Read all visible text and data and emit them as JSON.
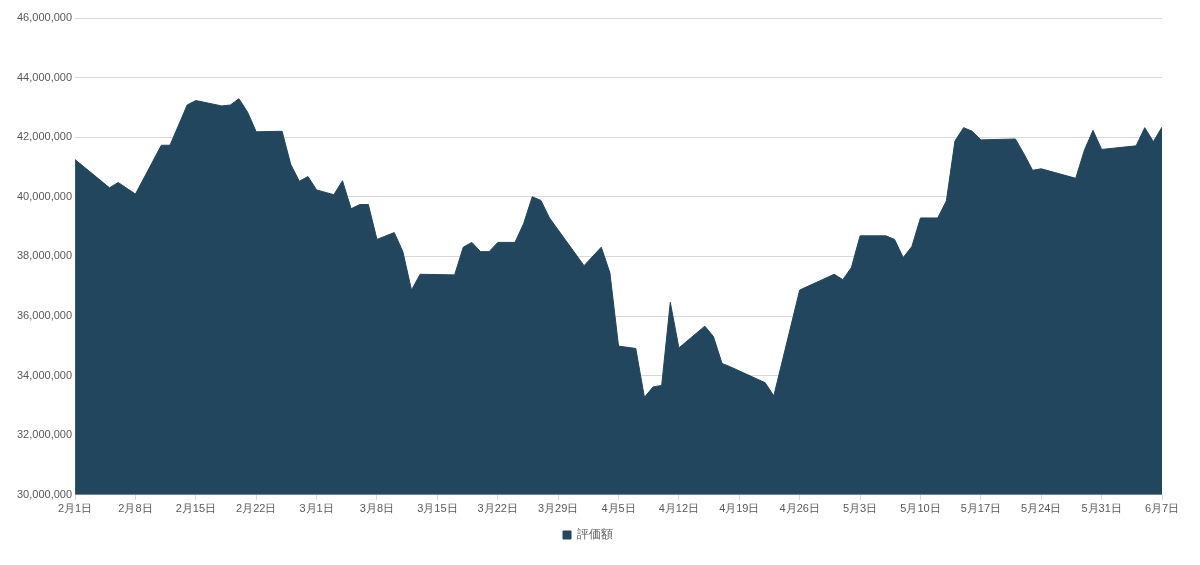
{
  "chart_data": {
    "type": "area",
    "legend": "bottom",
    "grid": "y",
    "x": [
      "--02-01",
      "--02-05",
      "--02-06",
      "--02-08",
      "--02-11",
      "--02-12",
      "--02-14",
      "--02-15",
      "--02-18",
      "--02-19",
      "--02-20",
      "--02-21",
      "--02-22",
      "--02-25",
      "--02-26",
      "--02-27",
      "--02-28",
      "--03-01",
      "--03-03",
      "--03-04",
      "--03-05",
      "--03-06",
      "--03-07",
      "--03-08",
      "--03-10",
      "--03-11",
      "--03-12",
      "--03-13",
      "--03-17",
      "--03-18",
      "--03-19",
      "--03-20",
      "--03-21",
      "--03-22",
      "--03-24",
      "--03-25",
      "--03-26",
      "--03-27",
      "--03-28",
      "--04-01",
      "--04-03",
      "--04-04",
      "--04-05",
      "--04-07",
      "--04-08",
      "--04-09",
      "--04-10",
      "--04-11",
      "--04-12",
      "--04-15",
      "--04-16",
      "--04-17",
      "--04-18",
      "--04-22",
      "--04-23",
      "--04-26",
      "--04-30",
      "--05-01",
      "--05-02",
      "--05-03",
      "--05-06",
      "--05-07",
      "--05-08",
      "--05-09",
      "--05-10",
      "--05-12",
      "--05-13",
      "--05-14",
      "--05-15",
      "--05-16",
      "--05-17",
      "--05-21",
      "--05-22",
      "--05-23",
      "--05-24",
      "--05-28",
      "--05-29",
      "--05-30",
      "--05-31",
      "--06-04",
      "--06-05",
      "--06-06",
      "--06-07"
    ],
    "series": [
      {
        "name": "評価額",
        "color": "#22465e",
        "values": [
          41250000,
          40300000,
          40480000,
          40090000,
          41730000,
          41730000,
          43080000,
          43230000,
          43050000,
          43080000,
          43290000,
          42840000,
          42180000,
          42200000,
          41090000,
          40520000,
          40680000,
          40230000,
          40070000,
          40540000,
          39600000,
          39740000,
          39740000,
          38570000,
          38800000,
          38160000,
          36870000,
          37400000,
          37380000,
          38310000,
          38470000,
          38160000,
          38160000,
          38470000,
          38470000,
          39100000,
          40000000,
          39880000,
          39290000,
          37690000,
          38310000,
          37450000,
          34990000,
          34910000,
          33270000,
          33620000,
          33670000,
          36460000,
          34930000,
          35660000,
          35310000,
          34410000,
          34290000,
          33760000,
          33320000,
          36870000,
          37400000,
          37220000,
          37630000,
          38690000,
          38690000,
          38570000,
          37960000,
          38330000,
          39290000,
          39290000,
          39860000,
          41870000,
          42320000,
          42200000,
          41910000,
          41940000,
          41440000,
          40890000,
          40940000,
          40620000,
          41560000,
          42230000,
          41590000,
          41710000,
          42320000,
          41850000,
          42340000
        ]
      }
    ],
    "xlim": [
      "--02-01",
      "--06-07"
    ],
    "xticks": [
      {
        "value": "--02-01",
        "label": "2月1日"
      },
      {
        "value": "--02-08",
        "label": "2月8日"
      },
      {
        "value": "--02-15",
        "label": "2月15日"
      },
      {
        "value": "--02-22",
        "label": "2月22日"
      },
      {
        "value": "--03-01",
        "label": "3月1日"
      },
      {
        "value": "--03-08",
        "label": "3月8日"
      },
      {
        "value": "--03-15",
        "label": "3月15日"
      },
      {
        "value": "--03-22",
        "label": "3月22日"
      },
      {
        "value": "--03-29",
        "label": "3月29日"
      },
      {
        "value": "--04-05",
        "label": "4月5日"
      },
      {
        "value": "--04-12",
        "label": "4月12日"
      },
      {
        "value": "--04-19",
        "label": "4月19日"
      },
      {
        "value": "--04-26",
        "label": "4月26日"
      },
      {
        "value": "--05-03",
        "label": "5月3日"
      },
      {
        "value": "--05-10",
        "label": "5月10日"
      },
      {
        "value": "--05-17",
        "label": "5月17日"
      },
      {
        "value": "--05-24",
        "label": "5月24日"
      },
      {
        "value": "--05-31",
        "label": "5月31日"
      },
      {
        "value": "--06-07",
        "label": "6月7日"
      }
    ],
    "ylim": [
      30000000,
      46000000
    ],
    "yticks": [
      {
        "value": 30000000,
        "label": "30,000,000"
      },
      {
        "value": 32000000,
        "label": "32,000,000"
      },
      {
        "value": 34000000,
        "label": "34,000,000"
      },
      {
        "value": 36000000,
        "label": "36,000,000"
      },
      {
        "value": 38000000,
        "label": "38,000,000"
      },
      {
        "value": 40000000,
        "label": "40,000,000"
      },
      {
        "value": 42000000,
        "label": "42,000,000"
      },
      {
        "value": 44000000,
        "label": "44,000,000"
      },
      {
        "value": 46000000,
        "label": "46,000,000"
      }
    ]
  }
}
